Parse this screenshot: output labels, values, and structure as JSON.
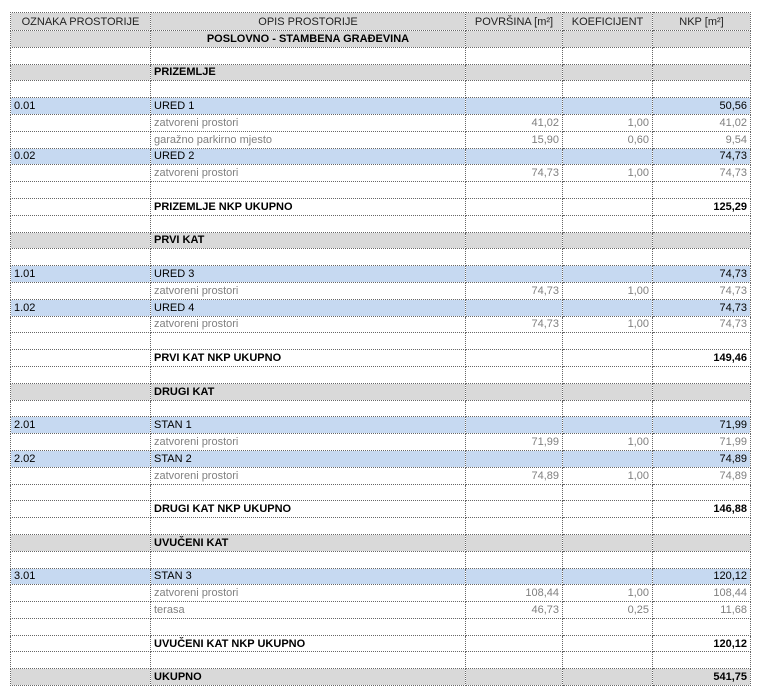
{
  "table": {
    "header": [
      "OZNAKA PROSTORIJE",
      "OPIS PROSTORIJE",
      "POVRŠINA [m²]",
      "KOEFICIJENT",
      "NKP [m²]"
    ],
    "header_fill": "#d9d9d9",
    "rows": [
      {
        "cells": [
          null,
          "POSLOVNO - STAMBENA GRAĐEVINA",
          null,
          null,
          null
        ],
        "fill": "#d9d9d9",
        "bold": true,
        "align": "center"
      },
      {
        "cells": [
          null,
          null,
          null,
          null,
          null
        ]
      },
      {
        "cells": [
          null,
          "PRIZEMLJE",
          null,
          null,
          null
        ],
        "fill": "#d9d9d9",
        "bold": true
      },
      {
        "cells": [
          null,
          null,
          null,
          null,
          null
        ]
      },
      {
        "cells": [
          "0.01",
          "URED 1",
          null,
          null,
          "50,56"
        ],
        "fill": "#c6d9f1"
      },
      {
        "cells": [
          null,
          "zatvoreni prostori",
          "41,02",
          "1,00",
          "41,02"
        ],
        "color": "#808080"
      },
      {
        "cells": [
          null,
          "garažno parkirno mjesto",
          "15,90",
          "0,60",
          "9,54"
        ],
        "color": "#808080"
      },
      {
        "cells": [
          "0.02",
          "URED 2",
          null,
          null,
          "74,73"
        ],
        "fill": "#c6d9f1"
      },
      {
        "cells": [
          null,
          "zatvoreni prostori",
          "74,73",
          "1,00",
          "74,73"
        ],
        "color": "#808080"
      },
      {
        "cells": [
          null,
          null,
          null,
          null,
          null
        ]
      },
      {
        "cells": [
          null,
          "PRIZEMLJE NKP UKUPNO",
          null,
          null,
          "125,29"
        ],
        "bold": true
      },
      {
        "cells": [
          null,
          null,
          null,
          null,
          null
        ]
      },
      {
        "cells": [
          null,
          "PRVI KAT",
          null,
          null,
          null
        ],
        "fill": "#d9d9d9",
        "bold": true
      },
      {
        "cells": [
          null,
          null,
          null,
          null,
          null
        ]
      },
      {
        "cells": [
          "1.01",
          "URED 3",
          null,
          null,
          "74,73"
        ],
        "fill": "#c6d9f1"
      },
      {
        "cells": [
          null,
          "zatvoreni prostori",
          "74,73",
          "1,00",
          "74,73"
        ],
        "color": "#808080"
      },
      {
        "cells": [
          "1.02",
          "URED 4",
          null,
          null,
          "74,73"
        ],
        "fill": "#c6d9f1"
      },
      {
        "cells": [
          null,
          "zatvoreni prostori",
          "74,73",
          "1,00",
          "74,73"
        ],
        "color": "#808080"
      },
      {
        "cells": [
          null,
          null,
          null,
          null,
          null
        ]
      },
      {
        "cells": [
          null,
          "PRVI KAT NKP UKUPNO",
          null,
          null,
          "149,46"
        ],
        "bold": true
      },
      {
        "cells": [
          null,
          null,
          null,
          null,
          null
        ]
      },
      {
        "cells": [
          null,
          "DRUGI KAT",
          null,
          null,
          null
        ],
        "fill": "#d9d9d9",
        "bold": true
      },
      {
        "cells": [
          null,
          null,
          null,
          null,
          null
        ]
      },
      {
        "cells": [
          "2.01",
          "STAN 1",
          null,
          null,
          "71,99"
        ],
        "fill": "#c6d9f1"
      },
      {
        "cells": [
          null,
          "zatvoreni prostori",
          "71,99",
          "1,00",
          "71,99"
        ],
        "color": "#808080"
      },
      {
        "cells": [
          "2.02",
          "STAN 2",
          null,
          null,
          "74,89"
        ],
        "fill": "#c6d9f1"
      },
      {
        "cells": [
          null,
          "zatvoreni prostori",
          "74,89",
          "1,00",
          "74,89"
        ],
        "color": "#808080"
      },
      {
        "cells": [
          null,
          null,
          null,
          null,
          null
        ]
      },
      {
        "cells": [
          null,
          "DRUGI KAT NKP UKUPNO",
          null,
          null,
          "146,88"
        ],
        "bold": true
      },
      {
        "cells": [
          null,
          null,
          null,
          null,
          null
        ]
      },
      {
        "cells": [
          null,
          "UVUČENI KAT",
          null,
          null,
          null
        ],
        "fill": "#d9d9d9",
        "bold": true
      },
      {
        "cells": [
          null,
          null,
          null,
          null,
          null
        ]
      },
      {
        "cells": [
          "3.01",
          "STAN 3",
          null,
          null,
          "120,12"
        ],
        "fill": "#c6d9f1"
      },
      {
        "cells": [
          null,
          "zatvoreni prostori",
          "108,44",
          "1,00",
          "108,44"
        ],
        "color": "#808080"
      },
      {
        "cells": [
          null,
          "terasa",
          "46,73",
          "0,25",
          "11,68"
        ],
        "color": "#808080"
      },
      {
        "cells": [
          null,
          null,
          null,
          null,
          null
        ]
      },
      {
        "cells": [
          null,
          "UVUČENI KAT NKP UKUPNO",
          null,
          null,
          "120,12"
        ],
        "bold": true
      },
      {
        "cells": [
          null,
          null,
          null,
          null,
          null
        ]
      },
      {
        "cells": [
          null,
          "UKUPNO",
          null,
          null,
          "541,75"
        ],
        "fill": "#d9d9d9",
        "bold": true
      }
    ]
  }
}
